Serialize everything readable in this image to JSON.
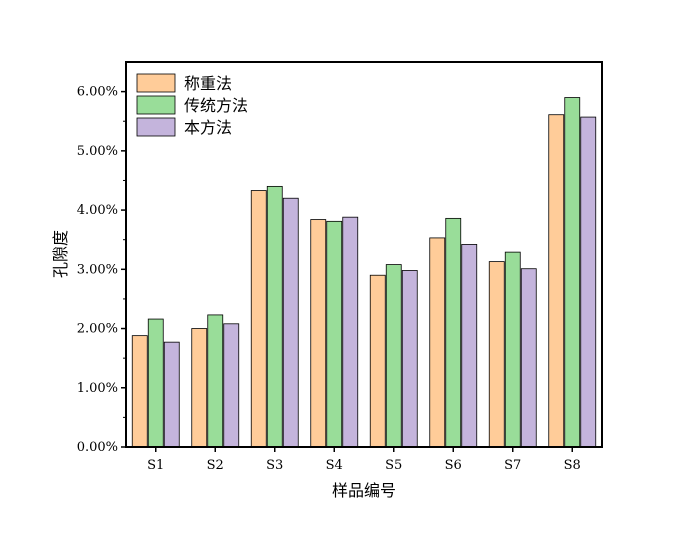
{
  "chart_data": {
    "type": "bar",
    "xlabel": "样品编号",
    "ylabel": "孔隙度",
    "categories": [
      "S1",
      "S2",
      "S3",
      "S4",
      "S5",
      "S6",
      "S7",
      "S8"
    ],
    "series": [
      {
        "name": "称重法",
        "color": "#FFCC99",
        "values": [
          1.88,
          2.0,
          4.33,
          3.84,
          2.9,
          3.53,
          3.13,
          5.61
        ]
      },
      {
        "name": "传统方法",
        "color": "#99DD99",
        "values": [
          2.16,
          2.23,
          4.4,
          3.81,
          3.08,
          3.86,
          3.29,
          5.9
        ]
      },
      {
        "name": "本方法",
        "color": "#C4B4DC",
        "values": [
          1.77,
          2.08,
          4.2,
          3.88,
          2.98,
          3.42,
          3.01,
          5.57
        ]
      }
    ],
    "ylim": [
      0,
      6.5
    ],
    "yticks": [
      0,
      1,
      2,
      3,
      4,
      5,
      6
    ],
    "ytick_labels": [
      "0.00%",
      "1.00%",
      "2.00%",
      "3.00%",
      "4.00%",
      "5.00%",
      "6.00%"
    ],
    "legend_position": "top-left",
    "grid": false
  }
}
